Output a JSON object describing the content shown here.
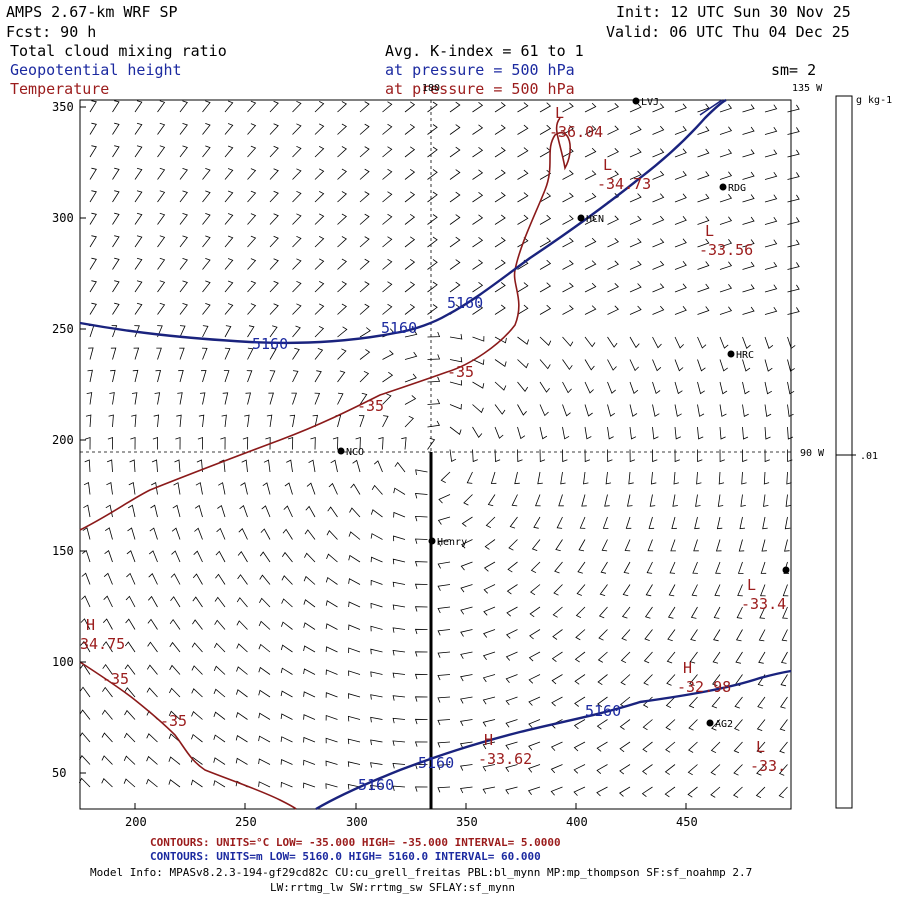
{
  "header": {
    "model": "AMPS 2.67-km WRF SP",
    "forecast": "Fcst:   90 h",
    "init": "Init: 12 UTC Sun 30 Nov 25",
    "valid": "Valid: 06 UTC Thu 04 Dec 25",
    "field1": "Total cloud mixing ratio",
    "field2": "Geopotential height",
    "field3": "Temperature",
    "avg": "Avg. K-index =  61 to   1",
    "pressure1": "at pressure =  500 hPa",
    "pressure2": "at pressure =  500 hPa",
    "smoothing": "sm= 2"
  },
  "colors": {
    "height": "#1a237e",
    "temperature": "#9b1c1c",
    "label_blue": "#1c2aa0",
    "label_red": "#9b1c1c"
  },
  "map": {
    "x_ticks": [
      "200",
      "250",
      "300",
      "350",
      "400",
      "450"
    ],
    "y_ticks": [
      "350",
      "300",
      "250",
      "200",
      "150",
      "100",
      "50"
    ],
    "lon_labels": {
      "top_180": "180",
      "top_135": "135 W",
      "right_90": "90 W"
    },
    "stations": [
      {
        "name": "LVJ",
        "sym": "dot"
      },
      {
        "name": "RDG",
        "sym": "dot"
      },
      {
        "name": "HCN",
        "sym": "dot"
      },
      {
        "name": "HRC",
        "sym": "dot"
      },
      {
        "name": "NCO",
        "sym": "dot"
      },
      {
        "name": "Henry",
        "sym": "dot"
      },
      {
        "name": "AG2",
        "sym": "dot"
      }
    ],
    "extrema": [
      {
        "kind": "L",
        "value": "-36.04"
      },
      {
        "kind": "L",
        "value": "-34.73"
      },
      {
        "kind": "L",
        "value": "-33.56"
      },
      {
        "kind": "H",
        "value": "34.75"
      },
      {
        "kind": "L",
        "value": "-33.4"
      },
      {
        "kind": "H",
        "value": "-32.98"
      },
      {
        "kind": "H",
        "value": "-33.62"
      },
      {
        "kind": "L",
        "value": "-33."
      }
    ],
    "height_labels": [
      "5160",
      "5160",
      "5160",
      "5160",
      "5160",
      "5160"
    ],
    "temp_labels": [
      "-35",
      "-35",
      "-35",
      "-35"
    ]
  },
  "colorbar": {
    "unit": "g kg-1",
    "value": ".01"
  },
  "footer": {
    "temp_contours": "CONTOURS:  UNITS=°C  LOW= -35.000      HIGH= -35.000      INTERVAL=   5.0000",
    "height_contours": "CONTOURS:  UNITS=m   LOW=  5160.0      HIGH=  5160.0      INTERVAL=   60.000",
    "model_info": "Model Info: MPASv8.2.3-194-gf29cd82c CU:cu_grell_freitas PBL:bl_mynn MP:mp_thompson SF:sf_noahmp 2.7",
    "model_info2": "LW:rrtmg_lw SW:rrtmg_sw SFLAY:sf_mynn"
  }
}
